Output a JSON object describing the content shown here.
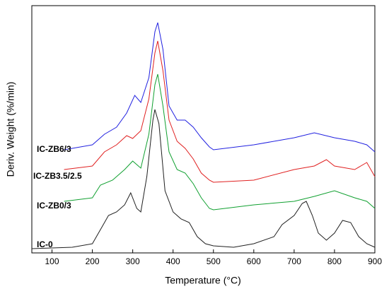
{
  "chart_data": {
    "type": "line",
    "xlabel": "Temperature (°C)",
    "ylabel": "Deriv. Weight (%/min)",
    "xlim": [
      50,
      900
    ],
    "xticks": [
      100,
      200,
      300,
      400,
      500,
      600,
      700,
      800,
      900
    ],
    "ylim": [
      0,
      350
    ],
    "series": [
      {
        "name": "IC-ZB6/3",
        "color": "#2020e0",
        "x": [
          130,
          200,
          230,
          260,
          285,
          305,
          320,
          340,
          355,
          362,
          375,
          390,
          410,
          430,
          450,
          470,
          490,
          500,
          600,
          700,
          750,
          800,
          850,
          880,
          900
        ],
        "values": [
          146,
          153,
          168,
          178,
          198,
          223,
          213,
          248,
          313,
          326,
          288,
          208,
          188,
          188,
          178,
          163,
          150,
          146,
          153,
          163,
          170,
          163,
          158,
          153,
          143
        ]
      },
      {
        "name": "IC-ZB3.5/2.5",
        "color": "#e02020",
        "x": [
          130,
          200,
          230,
          260,
          285,
          300,
          320,
          340,
          355,
          362,
          375,
          390,
          410,
          430,
          450,
          470,
          490,
          500,
          600,
          700,
          750,
          780,
          800,
          850,
          880,
          900
        ],
        "values": [
          118,
          123,
          143,
          153,
          166,
          162,
          173,
          218,
          283,
          300,
          258,
          188,
          158,
          148,
          133,
          113,
          103,
          100,
          103,
          118,
          123,
          132,
          123,
          118,
          128,
          108
        ]
      },
      {
        "name": "IC-ZB0/3",
        "color": "#10a030",
        "x": [
          130,
          200,
          220,
          250,
          280,
          300,
          320,
          340,
          355,
          362,
          375,
          390,
          410,
          430,
          450,
          470,
          490,
          500,
          600,
          700,
          750,
          800,
          850,
          880,
          900
        ],
        "values": [
          73,
          78,
          96,
          103,
          118,
          130,
          120,
          168,
          238,
          253,
          208,
          143,
          118,
          113,
          98,
          78,
          63,
          61,
          68,
          73,
          80,
          88,
          78,
          73,
          63
        ]
      },
      {
        "name": "IC-0",
        "color": "#202020",
        "x": [
          50,
          150,
          200,
          225,
          240,
          260,
          280,
          295,
          310,
          320,
          335,
          350,
          355,
          365,
          380,
          400,
          420,
          440,
          460,
          480,
          500,
          550,
          600,
          650,
          670,
          700,
          720,
          730,
          745,
          760,
          780,
          800,
          820,
          840,
          860,
          880,
          900
        ],
        "values": [
          6,
          8,
          13,
          38,
          53,
          58,
          68,
          85,
          63,
          58,
          108,
          188,
          203,
          183,
          88,
          58,
          48,
          43,
          23,
          13,
          10,
          8,
          13,
          23,
          40,
          53,
          70,
          73,
          53,
          28,
          18,
          28,
          46,
          43,
          23,
          13,
          8
        ]
      }
    ]
  }
}
